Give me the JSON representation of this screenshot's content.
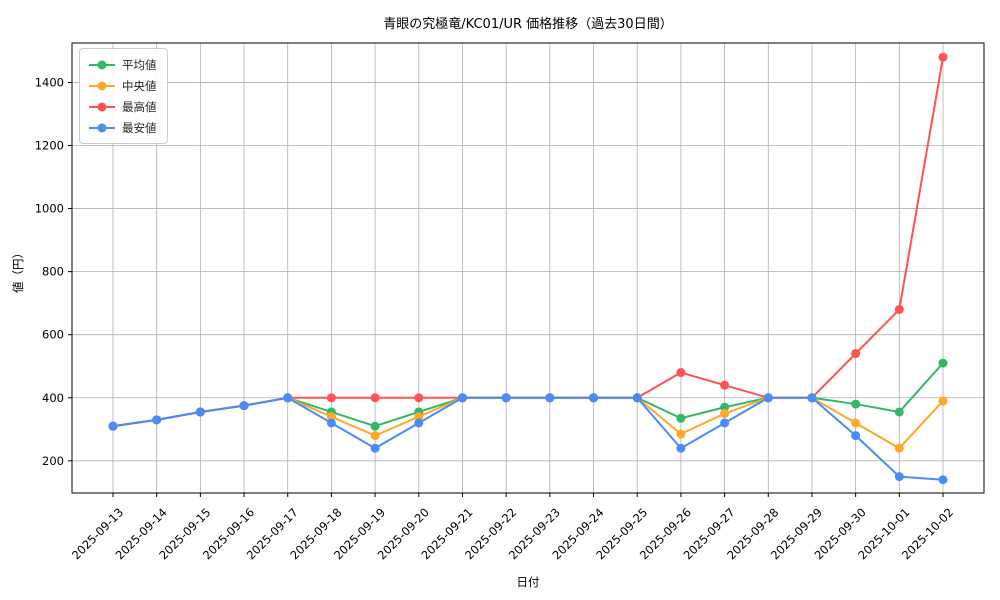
{
  "chart_data": {
    "type": "line",
    "title": "青眼の究極竜/KC01/UR  価格推移（過去30日間）",
    "xlabel": "日付",
    "ylabel": "値（円）",
    "x": [
      "2025-09-13",
      "2025-09-14",
      "2025-09-15",
      "2025-09-16",
      "2025-09-17",
      "2025-09-18",
      "2025-09-19",
      "2025-09-20",
      "2025-09-21",
      "2025-09-22",
      "2025-09-23",
      "2025-09-24",
      "2025-09-25",
      "2025-09-26",
      "2025-09-27",
      "2025-09-28",
      "2025-09-29",
      "2025-09-30",
      "2025-10-01",
      "2025-10-02"
    ],
    "yticks": [
      200,
      400,
      600,
      800,
      1000,
      1200,
      1400
    ],
    "ylim": [
      98,
      1525
    ],
    "grid": true,
    "legend_position": "upper left",
    "series": [
      {
        "name": "平均値",
        "color": "#34b766",
        "values": [
          310,
          330,
          355,
          375,
          400,
          355,
          310,
          355,
          400,
          400,
          400,
          400,
          400,
          335,
          370,
          400,
          400,
          380,
          355,
          510
        ]
      },
      {
        "name": "中央値",
        "color": "#ffa726",
        "values": [
          310,
          330,
          355,
          375,
          400,
          340,
          280,
          340,
          400,
          400,
          400,
          400,
          400,
          285,
          350,
          400,
          400,
          320,
          240,
          390
        ]
      },
      {
        "name": "最高値",
        "color": "#ff5252",
        "values": [
          310,
          330,
          355,
          375,
          400,
          400,
          400,
          400,
          400,
          400,
          400,
          400,
          400,
          480,
          440,
          400,
          400,
          540,
          680,
          1480
        ]
      },
      {
        "name": "最安値",
        "color": "#4a8cf7",
        "values": [
          310,
          330,
          355,
          375,
          400,
          320,
          240,
          320,
          400,
          400,
          400,
          400,
          400,
          240,
          320,
          400,
          400,
          280,
          150,
          140
        ]
      }
    ],
    "style": {
      "grid_color": "#b0b0b0",
      "spine_color": "#000000",
      "background": "#ffffff"
    }
  }
}
